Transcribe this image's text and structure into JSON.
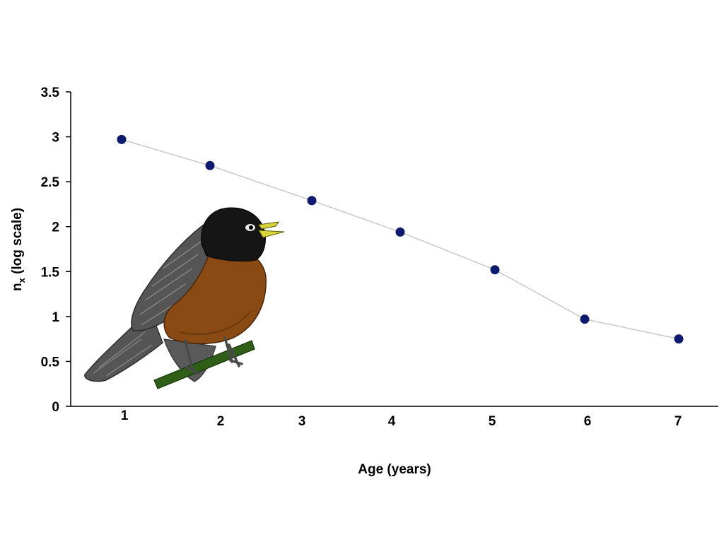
{
  "chart_data": {
    "type": "line",
    "xlabel": "Age (years)",
    "ylabel_main": "n",
    "ylabel_sub": "x",
    "ylabel_rest": " (log scale)",
    "ylim": [
      0,
      3.5
    ],
    "y_ticks": [
      "0",
      "0.5",
      "1",
      "1.5",
      "2",
      "2.5",
      "3",
      "3.5"
    ],
    "y_tick_values": [
      0,
      0.5,
      1,
      1.5,
      2,
      2.5,
      3,
      3.5
    ],
    "x": [
      1,
      2,
      3,
      4,
      5,
      6,
      7
    ],
    "x_tick_labels": [
      "1",
      "2",
      "3",
      "4",
      "5",
      "6",
      "7"
    ],
    "values": [
      2.97,
      2.68,
      2.29,
      1.94,
      1.52,
      0.97,
      0.75
    ],
    "grid": false,
    "legend": "none",
    "marker_color": "#0d1a6e",
    "line_color": "#c8c8c8"
  },
  "illustration": {
    "icon": "robin-bird-icon",
    "colors": {
      "head": "#151515",
      "breast": "#8a4a14",
      "wing": "#555555",
      "beak": "#d8d43a",
      "branch": "#2e5e18"
    }
  }
}
